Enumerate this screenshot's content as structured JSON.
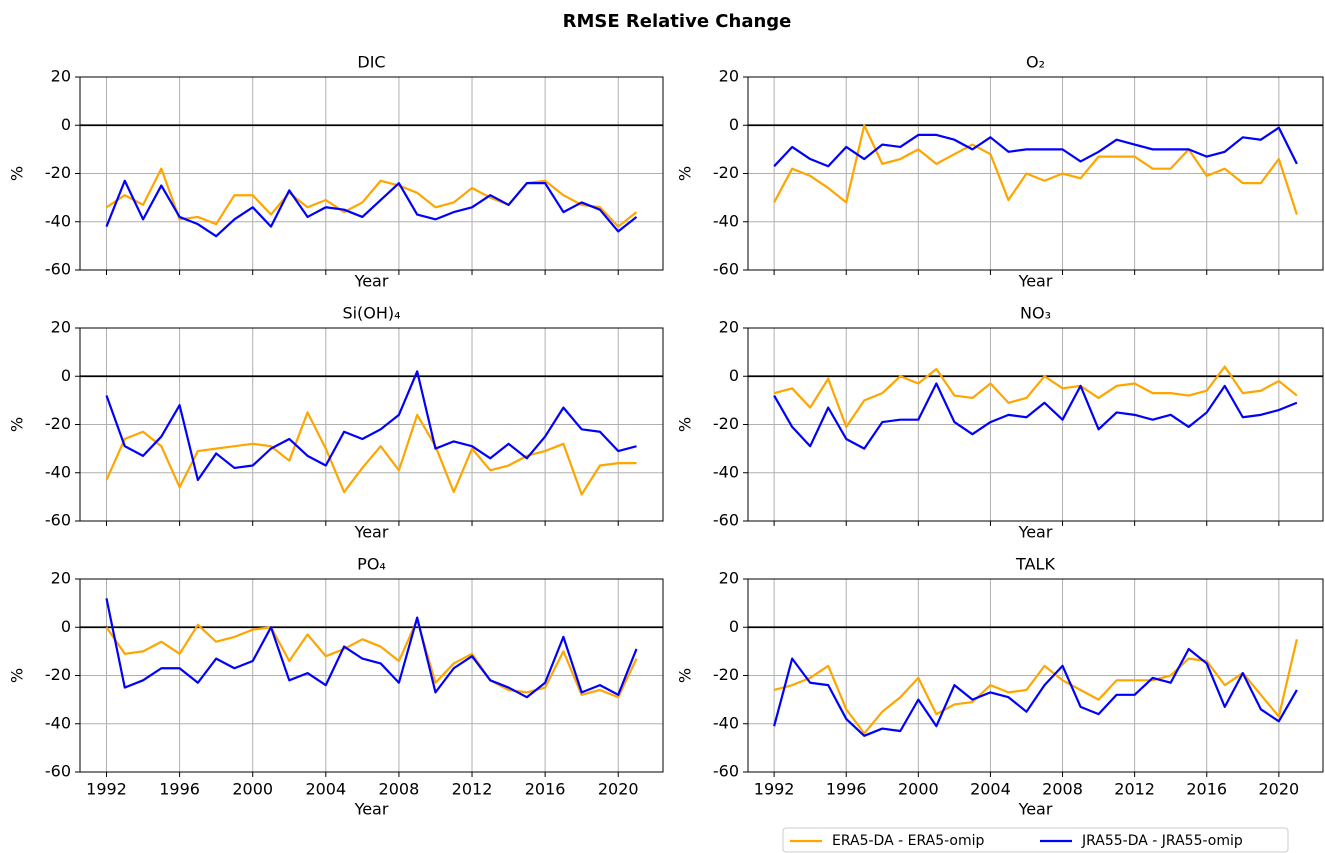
{
  "title": "RMSE Relative Change",
  "legend": [
    {
      "name": "ERA5-DA - ERA5-omip",
      "color": "#ffa500"
    },
    {
      "name": "JRA55-DA - JRA55-omip",
      "color": "#0000ff"
    }
  ],
  "chart_data": [
    {
      "type": "line",
      "title": "DIC",
      "xlabel": "Year",
      "ylabel": "%",
      "x": [
        1992,
        1993,
        1994,
        1995,
        1996,
        1997,
        1998,
        1999,
        2000,
        2001,
        2002,
        2003,
        2004,
        2005,
        2006,
        2007,
        2008,
        2009,
        2010,
        2011,
        2012,
        2013,
        2014,
        2015,
        2016,
        2017,
        2018,
        2019,
        2020,
        2021
      ],
      "series": [
        {
          "values": [
            -34,
            -29,
            -33,
            -18,
            -39,
            -38,
            -41,
            -29,
            -29,
            -37,
            -28,
            -34,
            -31,
            -36,
            -32,
            -23,
            -25,
            -28,
            -34,
            -32,
            -26,
            -30,
            -33,
            -24,
            -23,
            -29,
            -33,
            -34,
            -42,
            -36
          ]
        },
        {
          "values": [
            -42,
            -23,
            -39,
            -25,
            -38,
            -41,
            -46,
            -39,
            -34,
            -42,
            -27,
            -38,
            -34,
            -35,
            -38,
            -31,
            -24,
            -37,
            -39,
            -36,
            -34,
            -29,
            -33,
            -24,
            -24,
            -36,
            -32,
            -35,
            -44,
            -38
          ]
        }
      ],
      "xlim": [
        1990.55,
        2022.45
      ],
      "xticks": [
        1992,
        1996,
        2000,
        2004,
        2008,
        2012,
        2016,
        2020
      ],
      "ylim": [
        -60,
        20
      ],
      "yticks": [
        -60,
        -40,
        -20,
        0,
        20
      ],
      "hline": 0,
      "grid": true,
      "show_xticklabels": false
    },
    {
      "type": "line",
      "title": "O₂",
      "xlabel": "Year",
      "ylabel": "%",
      "x": [
        1992,
        1993,
        1994,
        1995,
        1996,
        1997,
        1998,
        1999,
        2000,
        2001,
        2002,
        2003,
        2004,
        2005,
        2006,
        2007,
        2008,
        2009,
        2010,
        2011,
        2012,
        2013,
        2014,
        2015,
        2016,
        2017,
        2018,
        2019,
        2020,
        2021
      ],
      "series": [
        {
          "values": [
            -32,
            -18,
            -21,
            -26,
            -32,
            0,
            -16,
            -14,
            -10,
            -16,
            -12,
            -8,
            -12,
            -31,
            -20,
            -23,
            -20,
            -22,
            -13,
            -13,
            -13,
            -18,
            -18,
            -10,
            -21,
            -18,
            -24,
            -24,
            -14,
            -37
          ]
        },
        {
          "values": [
            -17,
            -9,
            -14,
            -17,
            -9,
            -14,
            -8,
            -9,
            -4,
            -4,
            -6,
            -10,
            -5,
            -11,
            -10,
            -10,
            -10,
            -15,
            -11,
            -6,
            -8,
            -10,
            -10,
            -10,
            -13,
            -11,
            -5,
            -6,
            -1,
            -16
          ]
        }
      ],
      "xlim": [
        1990.55,
        2022.45
      ],
      "xticks": [
        1992,
        1996,
        2000,
        2004,
        2008,
        2012,
        2016,
        2020
      ],
      "ylim": [
        -60,
        20
      ],
      "yticks": [
        -60,
        -40,
        -20,
        0,
        20
      ],
      "hline": 0,
      "grid": true,
      "show_xticklabels": false
    },
    {
      "type": "line",
      "title": "Si(OH)₄",
      "xlabel": "Year",
      "ylabel": "%",
      "x": [
        1992,
        1993,
        1994,
        1995,
        1996,
        1997,
        1998,
        1999,
        2000,
        2001,
        2002,
        2003,
        2004,
        2005,
        2006,
        2007,
        2008,
        2009,
        2010,
        2011,
        2012,
        2013,
        2014,
        2015,
        2016,
        2017,
        2018,
        2019,
        2020,
        2021
      ],
      "series": [
        {
          "values": [
            -43,
            -26,
            -23,
            -29,
            -46,
            -31,
            -30,
            -29,
            -28,
            -29,
            -35,
            -15,
            -30,
            -48,
            -38,
            -29,
            -39,
            -16,
            -29,
            -48,
            -30,
            -39,
            -37,
            -33,
            -31,
            -28,
            -49,
            -37,
            -36,
            -36
          ]
        },
        {
          "values": [
            -8,
            -29,
            -33,
            -25,
            -12,
            -43,
            -32,
            -38,
            -37,
            -30,
            -26,
            -33,
            -37,
            -23,
            -26,
            -22,
            -16,
            2,
            -30,
            -27,
            -29,
            -34,
            -28,
            -34,
            -25,
            -13,
            -22,
            -23,
            -31,
            -29
          ]
        }
      ],
      "xlim": [
        1990.55,
        2022.45
      ],
      "xticks": [
        1992,
        1996,
        2000,
        2004,
        2008,
        2012,
        2016,
        2020
      ],
      "ylim": [
        -60,
        20
      ],
      "yticks": [
        -60,
        -40,
        -20,
        0,
        20
      ],
      "hline": 0,
      "grid": true,
      "show_xticklabels": false
    },
    {
      "type": "line",
      "title": "NO₃",
      "xlabel": "Year",
      "ylabel": "%",
      "x": [
        1992,
        1993,
        1994,
        1995,
        1996,
        1997,
        1998,
        1999,
        2000,
        2001,
        2002,
        2003,
        2004,
        2005,
        2006,
        2007,
        2008,
        2009,
        2010,
        2011,
        2012,
        2013,
        2014,
        2015,
        2016,
        2017,
        2018,
        2019,
        2020,
        2021
      ],
      "series": [
        {
          "values": [
            -7,
            -5,
            -13,
            -1,
            -21,
            -10,
            -7,
            0,
            -3,
            3,
            -8,
            -9,
            -3,
            -11,
            -9,
            0,
            -5,
            -4,
            -9,
            -4,
            -3,
            -7,
            -7,
            -8,
            -6,
            4,
            -7,
            -6,
            -2,
            -8
          ]
        },
        {
          "values": [
            -8,
            -21,
            -29,
            -13,
            -26,
            -30,
            -19,
            -18,
            -18,
            -3,
            -19,
            -24,
            -19,
            -16,
            -17,
            -11,
            -18,
            -4,
            -22,
            -15,
            -16,
            -18,
            -16,
            -21,
            -15,
            -4,
            -17,
            -16,
            -14,
            -11
          ]
        }
      ],
      "xlim": [
        1990.55,
        2022.45
      ],
      "xticks": [
        1992,
        1996,
        2000,
        2004,
        2008,
        2012,
        2016,
        2020
      ],
      "ylim": [
        -60,
        20
      ],
      "yticks": [
        -60,
        -40,
        -20,
        0,
        20
      ],
      "hline": 0,
      "grid": true,
      "show_xticklabels": false
    },
    {
      "type": "line",
      "title": "PO₄",
      "xlabel": "Year",
      "ylabel": "%",
      "x": [
        1992,
        1993,
        1994,
        1995,
        1996,
        1997,
        1998,
        1999,
        2000,
        2001,
        2002,
        2003,
        2004,
        2005,
        2006,
        2007,
        2008,
        2009,
        2010,
        2011,
        2012,
        2013,
        2014,
        2015,
        2016,
        2017,
        2018,
        2019,
        2020,
        2021
      ],
      "series": [
        {
          "values": [
            0,
            -11,
            -10,
            -6,
            -11,
            1,
            -6,
            -4,
            -1,
            0,
            -14,
            -3,
            -12,
            -9,
            -5,
            -8,
            -14,
            3,
            -23,
            -15,
            -11,
            -22,
            -26,
            -27,
            -25,
            -10,
            -28,
            -26,
            -29,
            -13
          ]
        },
        {
          "values": [
            12,
            -25,
            -22,
            -17,
            -17,
            -23,
            -13,
            -17,
            -14,
            0,
            -22,
            -19,
            -24,
            -8,
            -13,
            -15,
            -23,
            4,
            -27,
            -17,
            -12,
            -22,
            -25,
            -29,
            -23,
            -4,
            -27,
            -24,
            -28,
            -9
          ]
        }
      ],
      "xlim": [
        1990.55,
        2022.45
      ],
      "xticks": [
        1992,
        1996,
        2000,
        2004,
        2008,
        2012,
        2016,
        2020
      ],
      "ylim": [
        -60,
        20
      ],
      "yticks": [
        -60,
        -40,
        -20,
        0,
        20
      ],
      "hline": 0,
      "grid": true,
      "show_xticklabels": true
    },
    {
      "type": "line",
      "title": "TALK",
      "xlabel": "Year",
      "ylabel": "%",
      "x": [
        1992,
        1993,
        1994,
        1995,
        1996,
        1997,
        1998,
        1999,
        2000,
        2001,
        2002,
        2003,
        2004,
        2005,
        2006,
        2007,
        2008,
        2009,
        2010,
        2011,
        2012,
        2013,
        2014,
        2015,
        2016,
        2017,
        2018,
        2019,
        2020,
        2021
      ],
      "series": [
        {
          "values": [
            -26,
            -24,
            -21,
            -16,
            -34,
            -44,
            -35,
            -29,
            -21,
            -36,
            -32,
            -31,
            -24,
            -27,
            -26,
            -16,
            -22,
            -26,
            -30,
            -22,
            -22,
            -22,
            -20,
            -13,
            -14,
            -24,
            -19,
            -28,
            -37,
            -5
          ]
        },
        {
          "values": [
            -41,
            -13,
            -23,
            -24,
            -38,
            -45,
            -42,
            -43,
            -30,
            -41,
            -24,
            -30,
            -27,
            -29,
            -35,
            -24,
            -16,
            -33,
            -36,
            -28,
            -28,
            -21,
            -23,
            -9,
            -15,
            -33,
            -19,
            -34,
            -39,
            -26
          ]
        }
      ],
      "xlim": [
        1990.55,
        2022.45
      ],
      "xticks": [
        1992,
        1996,
        2000,
        2004,
        2008,
        2012,
        2016,
        2020
      ],
      "ylim": [
        -60,
        20
      ],
      "yticks": [
        -60,
        -40,
        -20,
        0,
        20
      ],
      "hline": 0,
      "grid": true,
      "show_xticklabels": true
    }
  ]
}
